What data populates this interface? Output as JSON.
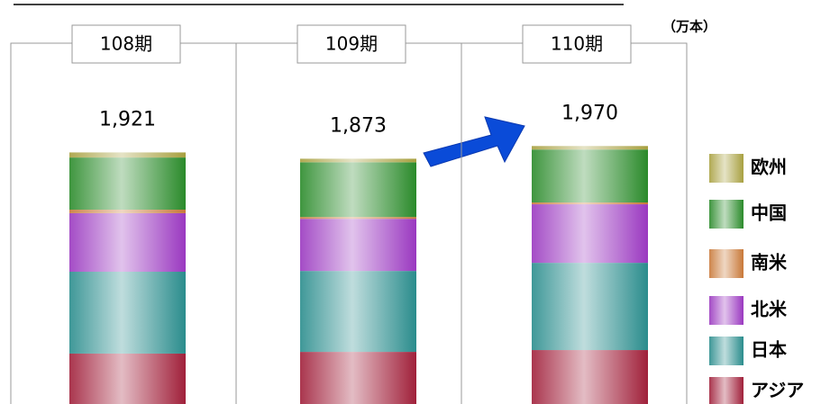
{
  "chart_data": {
    "type": "bar",
    "stacked": true,
    "unit": "（万本）",
    "categories": [
      "108期",
      "109期",
      "110期"
    ],
    "series": [
      {
        "name": "アジア",
        "color": "#a0203a",
        "values": [
          385,
          398,
          412
        ]
      },
      {
        "name": "日本",
        "color": "#2a8c8c",
        "values": [
          625,
          618,
          666
        ]
      },
      {
        "name": "北米",
        "color": "#9a38c0",
        "values": [
          447,
          398,
          447
        ]
      },
      {
        "name": "南米",
        "color": "#c87838",
        "values": [
          27,
          14,
          14
        ]
      },
      {
        "name": "中国",
        "color": "#2a8a2a",
        "values": [
          398,
          418,
          404
        ]
      },
      {
        "name": "欧州",
        "color": "#a8a040",
        "values": [
          39,
          27,
          27
        ]
      }
    ],
    "totals": [
      1921,
      1873,
      1970
    ],
    "total_labels": [
      "1,921",
      "1,873",
      "1,970"
    ],
    "ylim": [
      0,
      3085
    ]
  }
}
